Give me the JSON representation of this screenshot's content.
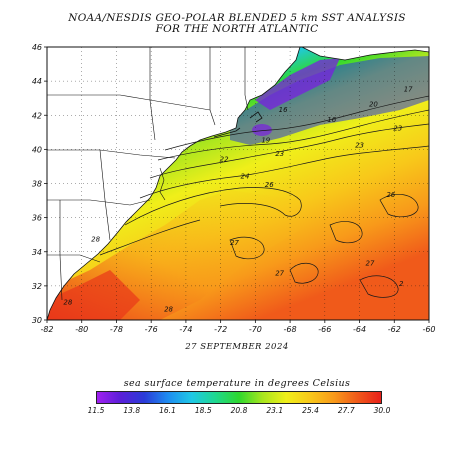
{
  "title_line1": "NOAA/NESDIS GEO-POLAR BLENDED 5 km SST ANALYSIS",
  "title_line2": "FOR THE NORTH ATLANTIC",
  "date": "27 SEPTEMBER 2024",
  "colorbar": {
    "label": "sea surface temperature in degrees Celsius",
    "ticks": [
      "11.5",
      "13.8",
      "16.1",
      "18.5",
      "20.8",
      "23.1",
      "25.4",
      "27.7",
      "30.0"
    ],
    "colors": [
      "#a020f0",
      "#5a1fd8",
      "#2a3bd8",
      "#1e8cf0",
      "#1fc8e6",
      "#1fd890",
      "#2ed82e",
      "#a8e61e",
      "#f0ef1a",
      "#f8c81a",
      "#f89a1a",
      "#f05a1a",
      "#e8201a"
    ]
  },
  "map": {
    "lon_ticks": [
      "-82",
      "-80",
      "-78",
      "-76",
      "-74",
      "-72",
      "-70",
      "-68",
      "-66",
      "-64",
      "-62",
      "-60"
    ],
    "lat_ticks": [
      "30",
      "32",
      "34",
      "36",
      "38",
      "40",
      "42",
      "44",
      "46"
    ],
    "lon_range": [
      -82,
      -60
    ],
    "lat_range": [
      30,
      46
    ],
    "contour_labels": [
      {
        "text": "16",
        "lon": -68.4,
        "lat": 42.2
      },
      {
        "text": "16",
        "lon": -65.6,
        "lat": 41.6
      },
      {
        "text": "19",
        "lon": -69.4,
        "lat": 40.4
      },
      {
        "text": "20",
        "lon": -63.2,
        "lat": 42.5
      },
      {
        "text": "17",
        "lon": -61.2,
        "lat": 43.4
      },
      {
        "text": "23",
        "lon": -61.8,
        "lat": 41.1
      },
      {
        "text": "22",
        "lon": -71.8,
        "lat": 39.3
      },
      {
        "text": "23",
        "lon": -68.6,
        "lat": 39.6
      },
      {
        "text": "23",
        "lon": -64.0,
        "lat": 40.1
      },
      {
        "text": "24",
        "lon": -70.6,
        "lat": 38.3
      },
      {
        "text": "26",
        "lon": -69.2,
        "lat": 37.8
      },
      {
        "text": "26",
        "lon": -62.2,
        "lat": 37.2
      },
      {
        "text": "27",
        "lon": -71.2,
        "lat": 34.4
      },
      {
        "text": "27",
        "lon": -68.6,
        "lat": 32.6
      },
      {
        "text": "27",
        "lon": -63.4,
        "lat": 33.2
      },
      {
        "text": "28",
        "lon": -75.0,
        "lat": 30.5
      },
      {
        "text": "28",
        "lon": -80.8,
        "lat": 30.9
      },
      {
        "text": "28",
        "lon": -79.2,
        "lat": 34.6
      },
      {
        "text": "2",
        "lon": -61.6,
        "lat": 32.0
      }
    ]
  }
}
